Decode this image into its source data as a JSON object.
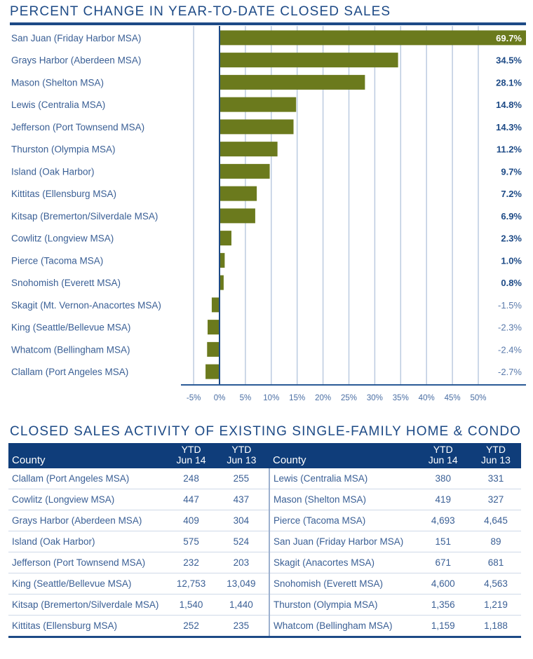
{
  "chart_title": "PERCENT CHANGE IN YEAR-TO-DATE CLOSED SALES",
  "chart_data": {
    "type": "bar",
    "orientation": "horizontal",
    "title": "PERCENT CHANGE IN YEAR-TO-DATE CLOSED SALES",
    "xlabel": "",
    "ylabel": "",
    "xlim": [
      -5,
      50
    ],
    "grid": true,
    "legend": "none",
    "bar_color": "#6b7a1d",
    "categories": [
      "San Juan (Friday Harbor MSA)",
      "Grays Harbor (Aberdeen MSA)",
      "Mason (Shelton MSA)",
      "Lewis (Centralia MSA)",
      "Jefferson (Port Townsend MSA)",
      "Thurston (Olympia MSA)",
      "Island (Oak Harbor)",
      "Kittitas (Ellensburg MSA)",
      "Kitsap (Bremerton/Silverdale MSA)",
      "Cowlitz (Longview MSA)",
      "Pierce (Tacoma MSA)",
      "Snohomish (Everett MSA)",
      "Skagit (Mt. Vernon-Anacortes MSA)",
      "King (Seattle/Bellevue MSA)",
      "Whatcom (Bellingham MSA)",
      "Clallam (Port Angeles MSA)"
    ],
    "values": [
      69.7,
      34.5,
      28.1,
      14.8,
      14.3,
      11.2,
      9.7,
      7.2,
      6.9,
      2.3,
      1.0,
      0.8,
      -1.5,
      -2.3,
      -2.4,
      -2.7
    ],
    "value_labels": [
      "69.7%",
      "34.5%",
      "28.1%",
      "14.8%",
      "14.3%",
      "11.2%",
      "9.7%",
      "7.2%",
      "6.9%",
      "2.3%",
      "1.0%",
      "0.8%",
      "-1.5%",
      "-2.3%",
      "-2.4%",
      "-2.7%"
    ],
    "x_ticks": [
      -5,
      0,
      5,
      10,
      15,
      20,
      25,
      30,
      35,
      40,
      45,
      50
    ],
    "x_tick_labels": [
      "-5%",
      "0%",
      "5%",
      "10%",
      "15%",
      "20%",
      "25%",
      "30%",
      "35%",
      "40%",
      "45%",
      "50%"
    ]
  },
  "table": {
    "title": "CLOSED SALES ACTIVITY OF EXISTING SINGLE-FAMILY HOME & CONDO",
    "headers": {
      "county": "County",
      "ytd14_line1": "YTD",
      "ytd14_line2": "Jun 14",
      "ytd13_line1": "YTD",
      "ytd13_line2": "Jun 13"
    },
    "left": [
      {
        "county": "Clallam (Port Angeles MSA)",
        "jun14": "248",
        "jun13": "255"
      },
      {
        "county": "Cowlitz (Longview MSA)",
        "jun14": "447",
        "jun13": "437"
      },
      {
        "county": "Grays Harbor (Aberdeen MSA)",
        "jun14": "409",
        "jun13": "304"
      },
      {
        "county": "Island (Oak Harbor)",
        "jun14": "575",
        "jun13": "524"
      },
      {
        "county": "Jefferson (Port Townsend MSA)",
        "jun14": "232",
        "jun13": "203"
      },
      {
        "county": "King (Seattle/Bellevue MSA)",
        "jun14": "12,753",
        "jun13": "13,049"
      },
      {
        "county": "Kitsap (Bremerton/Silverdale MSA)",
        "jun14": "1,540",
        "jun13": "1,440"
      },
      {
        "county": "Kittitas (Ellensburg MSA)",
        "jun14": "252",
        "jun13": "235"
      }
    ],
    "right": [
      {
        "county": "Lewis (Centralia MSA)",
        "jun14": "380",
        "jun13": "331"
      },
      {
        "county": "Mason (Shelton MSA)",
        "jun14": "419",
        "jun13": "327"
      },
      {
        "county": "Pierce (Tacoma MSA)",
        "jun14": "4,693",
        "jun13": "4,645"
      },
      {
        "county": "San Juan (Friday Harbor MSA)",
        "jun14": "151",
        "jun13": "89"
      },
      {
        "county": "Skagit (Anacortes MSA)",
        "jun14": "671",
        "jun13": "681"
      },
      {
        "county": "Snohomish (Everett MSA)",
        "jun14": "4,600",
        "jun13": "4,563"
      },
      {
        "county": "Thurston (Olympia MSA)",
        "jun14": "1,356",
        "jun13": "1,219"
      },
      {
        "county": "Whatcom (Bellingham MSA)",
        "jun14": "1,159",
        "jun13": "1,188"
      }
    ]
  }
}
